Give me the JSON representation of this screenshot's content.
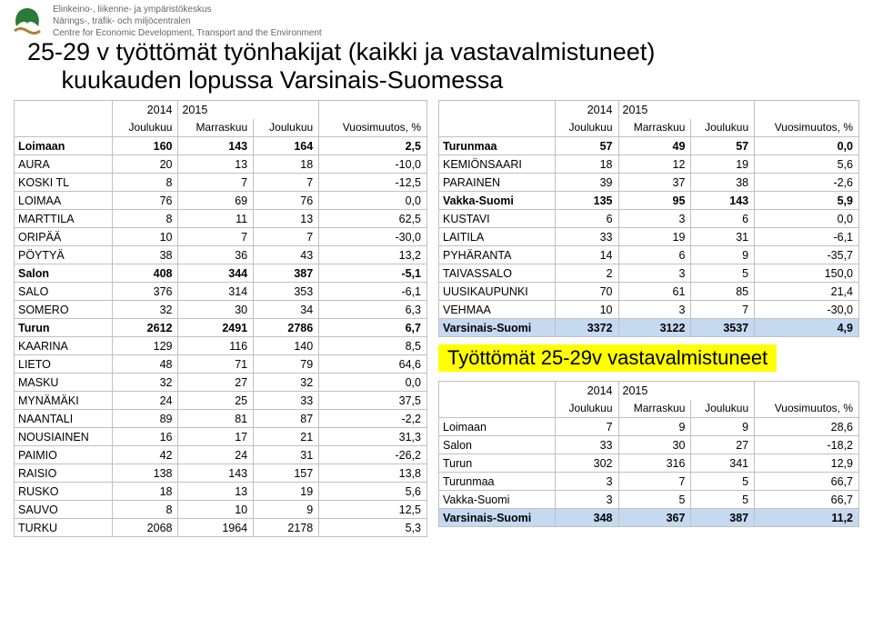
{
  "header": {
    "line1": "Elinkeino-, liikenne- ja ympäristökeskus",
    "line2": "Närings-, trafik- och miljöcentralen",
    "line3": "Centre for Economic Development, Transport and the Environment"
  },
  "title_line1": "25-29 v työttömät työnhakijat (kaikki ja vastavalmistuneet)",
  "title_line2": "kuukauden lopussa Varsinais-Suomessa",
  "subtitle": "Työttömät 25-29v vastavalmistuneet",
  "cols": {
    "y2014": "2014",
    "y2015": "2015",
    "joulukuu": "Joulukuu",
    "marraskuu": "Marraskuu",
    "vuosi": "Vuosimuutos, %"
  },
  "colors": {
    "highlight_row": "#c5d9f1",
    "border": "#c0c0c0",
    "yellow": "#ffff00"
  },
  "left": [
    {
      "n": "Loimaan",
      "a": "160",
      "b": "143",
      "c": "164",
      "d": "2,5",
      "bold": true
    },
    {
      "n": "AURA",
      "a": "20",
      "b": "13",
      "c": "18",
      "d": "-10,0"
    },
    {
      "n": "KOSKI TL",
      "a": "8",
      "b": "7",
      "c": "7",
      "d": "-12,5"
    },
    {
      "n": "LOIMAA",
      "a": "76",
      "b": "69",
      "c": "76",
      "d": "0,0"
    },
    {
      "n": "MARTTILA",
      "a": "8",
      "b": "11",
      "c": "13",
      "d": "62,5"
    },
    {
      "n": "ORIPÄÄ",
      "a": "10",
      "b": "7",
      "c": "7",
      "d": "-30,0"
    },
    {
      "n": "PÖYTYÄ",
      "a": "38",
      "b": "36",
      "c": "43",
      "d": "13,2"
    },
    {
      "n": "Salon",
      "a": "408",
      "b": "344",
      "c": "387",
      "d": "-5,1",
      "bold": true
    },
    {
      "n": "SALO",
      "a": "376",
      "b": "314",
      "c": "353",
      "d": "-6,1"
    },
    {
      "n": "SOMERO",
      "a": "32",
      "b": "30",
      "c": "34",
      "d": "6,3"
    },
    {
      "n": "Turun",
      "a": "2612",
      "b": "2491",
      "c": "2786",
      "d": "6,7",
      "bold": true
    },
    {
      "n": "KAARINA",
      "a": "129",
      "b": "116",
      "c": "140",
      "d": "8,5"
    },
    {
      "n": "LIETO",
      "a": "48",
      "b": "71",
      "c": "79",
      "d": "64,6"
    },
    {
      "n": "MASKU",
      "a": "32",
      "b": "27",
      "c": "32",
      "d": "0,0"
    },
    {
      "n": "MYNÄMÄKI",
      "a": "24",
      "b": "25",
      "c": "33",
      "d": "37,5"
    },
    {
      "n": "NAANTALI",
      "a": "89",
      "b": "81",
      "c": "87",
      "d": "-2,2"
    },
    {
      "n": "NOUSIAINEN",
      "a": "16",
      "b": "17",
      "c": "21",
      "d": "31,3"
    },
    {
      "n": "PAIMIO",
      "a": "42",
      "b": "24",
      "c": "31",
      "d": "-26,2"
    },
    {
      "n": "RAISIO",
      "a": "138",
      "b": "143",
      "c": "157",
      "d": "13,8"
    },
    {
      "n": "RUSKO",
      "a": "18",
      "b": "13",
      "c": "19",
      "d": "5,6"
    },
    {
      "n": "SAUVO",
      "a": "8",
      "b": "10",
      "c": "9",
      "d": "12,5"
    },
    {
      "n": "TURKU",
      "a": "2068",
      "b": "1964",
      "c": "2178",
      "d": "5,3"
    }
  ],
  "right_top": [
    {
      "n": "Turunmaa",
      "a": "57",
      "b": "49",
      "c": "57",
      "d": "0,0",
      "bold": true
    },
    {
      "n": "KEMIÖNSAARI",
      "a": "18",
      "b": "12",
      "c": "19",
      "d": "5,6"
    },
    {
      "n": "PARAINEN",
      "a": "39",
      "b": "37",
      "c": "38",
      "d": "-2,6"
    },
    {
      "n": "Vakka-Suomi",
      "a": "135",
      "b": "95",
      "c": "143",
      "d": "5,9",
      "bold": true
    },
    {
      "n": "KUSTAVI",
      "a": "6",
      "b": "3",
      "c": "6",
      "d": "0,0"
    },
    {
      "n": "LAITILA",
      "a": "33",
      "b": "19",
      "c": "31",
      "d": "-6,1"
    },
    {
      "n": "PYHÄRANTA",
      "a": "14",
      "b": "6",
      "c": "9",
      "d": "-35,7"
    },
    {
      "n": "TAIVASSALO",
      "a": "2",
      "b": "3",
      "c": "5",
      "d": "150,0"
    },
    {
      "n": "UUSIKAUPUNKI",
      "a": "70",
      "b": "61",
      "c": "85",
      "d": "21,4"
    },
    {
      "n": "VEHMAA",
      "a": "10",
      "b": "3",
      "c": "7",
      "d": "-30,0"
    },
    {
      "n": "Varsinais-Suomi",
      "a": "3372",
      "b": "3122",
      "c": "3537",
      "d": "4,9",
      "hl": true
    }
  ],
  "right_bottom": [
    {
      "n": "Loimaan",
      "a": "7",
      "b": "9",
      "c": "9",
      "d": "28,6"
    },
    {
      "n": "Salon",
      "a": "33",
      "b": "30",
      "c": "27",
      "d": "-18,2"
    },
    {
      "n": "Turun",
      "a": "302",
      "b": "316",
      "c": "341",
      "d": "12,9"
    },
    {
      "n": "Turunmaa",
      "a": "3",
      "b": "7",
      "c": "5",
      "d": "66,7"
    },
    {
      "n": "Vakka-Suomi",
      "a": "3",
      "b": "5",
      "c": "5",
      "d": "66,7"
    },
    {
      "n": "Varsinais-Suomi",
      "a": "348",
      "b": "367",
      "c": "387",
      "d": "11,2",
      "hl": true
    }
  ]
}
